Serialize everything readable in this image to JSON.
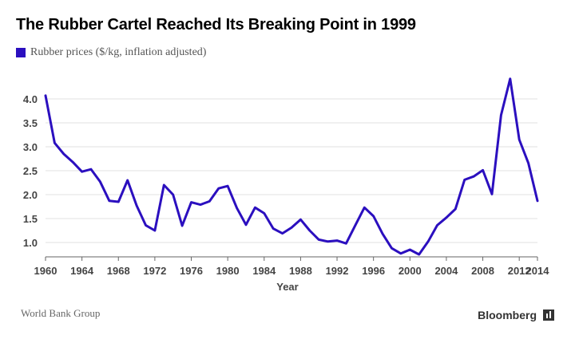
{
  "chart_data": {
    "type": "line",
    "title": "The Rubber Cartel Reached Its Breaking Point in 1999",
    "xlabel": "Year",
    "ylabel": "",
    "xlim": [
      1960,
      2014
    ],
    "ylim": [
      0.7,
      4.45
    ],
    "x_ticks": [
      1960,
      1964,
      1968,
      1972,
      1976,
      1980,
      1984,
      1988,
      1992,
      1996,
      2000,
      2004,
      2008,
      2012,
      2014
    ],
    "x_tick_labels": [
      "1960",
      "1964",
      "1968",
      "1972",
      "1976",
      "1980",
      "1984",
      "1988",
      "1992",
      "1996",
      "2000",
      "2004",
      "2008",
      "2012",
      "2014"
    ],
    "y_ticks": [
      1.0,
      1.5,
      2.0,
      2.5,
      3.0,
      3.5,
      4.0
    ],
    "y_tick_labels": [
      "1.0",
      "1.5",
      "2.0",
      "2.5",
      "3.0",
      "3.5",
      "4.0"
    ],
    "grid": true,
    "legend_position": "top-left",
    "series": [
      {
        "name": "Rubber prices ($/kg, inflation adjusted)",
        "color": "#2b0fbf",
        "x": [
          1960,
          1961,
          1962,
          1963,
          1964,
          1965,
          1966,
          1967,
          1968,
          1969,
          1970,
          1971,
          1972,
          1973,
          1974,
          1975,
          1976,
          1977,
          1978,
          1979,
          1980,
          1981,
          1982,
          1983,
          1984,
          1985,
          1986,
          1987,
          1988,
          1989,
          1990,
          1991,
          1992,
          1993,
          1994,
          1995,
          1996,
          1997,
          1998,
          1999,
          2000,
          2001,
          2002,
          2003,
          2004,
          2005,
          2006,
          2007,
          2008,
          2009,
          2010,
          2011,
          2012,
          2013,
          2014
        ],
        "values": [
          4.07,
          3.08,
          2.85,
          2.68,
          2.48,
          2.53,
          2.27,
          1.87,
          1.85,
          2.3,
          1.77,
          1.36,
          1.25,
          2.2,
          2.0,
          1.35,
          1.84,
          1.79,
          1.86,
          2.13,
          2.18,
          1.72,
          1.37,
          1.73,
          1.61,
          1.29,
          1.19,
          1.31,
          1.48,
          1.25,
          1.06,
          1.02,
          1.04,
          0.98,
          1.36,
          1.73,
          1.55,
          1.18,
          0.88,
          0.77,
          0.85,
          0.75,
          1.02,
          1.36,
          1.52,
          1.7,
          2.31,
          2.38,
          2.51,
          2.01,
          3.66,
          4.42,
          3.15,
          2.66,
          1.87
        ]
      }
    ]
  },
  "source": "World Bank Group",
  "brand": "Bloomberg"
}
